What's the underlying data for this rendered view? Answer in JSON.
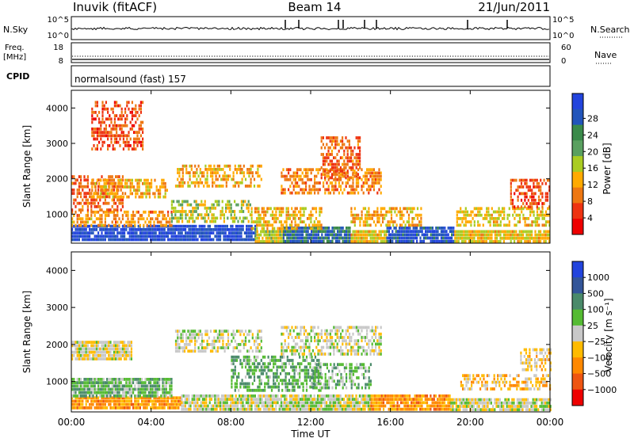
{
  "header": {
    "station": "Inuvik (fitACF)",
    "beam": "Beam 14",
    "date": "21/Jun/2011"
  },
  "summary": {
    "nsky_label": "N.Sky",
    "nsky_ticks": [
      "10^5",
      "10^0"
    ],
    "nsearch_label": "N.Search",
    "nsearch_ticks": [
      "10^5",
      "10^0"
    ],
    "freq_label": "Freq.",
    "freq_unit": "[MHz]",
    "freq_ticks": [
      "18",
      "8"
    ],
    "nave_label": "Nave",
    "nave_ticks": [
      "60",
      "0"
    ],
    "cpid_label": "CPID",
    "cpid_value": "normalsound (fast) 157"
  },
  "colors": {
    "power_scale": [
      "#2244dd",
      "#2255bb",
      "#3a8a4a",
      "#5aa060",
      "#aacc22",
      "#ffaa00",
      "#ee7711",
      "#ee3311",
      "#ee0000"
    ],
    "velocity_scale": [
      "#2244dd",
      "#335599",
      "#4a8a6a",
      "#55bb33",
      "#c8c8c8",
      "#ffbb00",
      "#ff8800",
      "#ee5511",
      "#ee0000"
    ]
  },
  "chart_data": [
    {
      "type": "heatmap",
      "title": "Power",
      "xlabel": "",
      "ylabel": "Slant Range [km]",
      "xlim": [
        "00:00",
        "24:00"
      ],
      "ylim": [
        180,
        4500
      ],
      "y_ticks": [
        "4000",
        "3000",
        "2000",
        "1000"
      ],
      "colorbar_label": "Power [dB]",
      "colorbar_ticks": [
        "28",
        "24",
        "20",
        "16",
        "12",
        "8",
        "4"
      ],
      "colorbar_range": [
        0,
        30
      ],
      "regions": [
        {
          "t0": 0.0,
          "t1": 9.2,
          "r0": 250,
          "r1": 700,
          "level": 27
        },
        {
          "t0": 9.2,
          "t1": 10.6,
          "r0": 250,
          "r1": 550,
          "level": 14
        },
        {
          "t0": 10.6,
          "t1": 14.0,
          "r0": 250,
          "r1": 650,
          "level": 24
        },
        {
          "t0": 14.0,
          "t1": 15.8,
          "r0": 250,
          "r1": 550,
          "level": 13
        },
        {
          "t0": 15.8,
          "t1": 19.2,
          "r0": 250,
          "r1": 650,
          "level": 26
        },
        {
          "t0": 19.2,
          "t1": 24.0,
          "r0": 250,
          "r1": 550,
          "level": 13
        },
        {
          "t0": 0.0,
          "t1": 5.0,
          "r0": 700,
          "r1": 1100,
          "level": 10
        },
        {
          "t0": 0.0,
          "t1": 2.6,
          "r0": 1100,
          "r1": 2100,
          "level": 7
        },
        {
          "t0": 1.0,
          "t1": 4.8,
          "r0": 1500,
          "r1": 2000,
          "level": 11
        },
        {
          "t0": 1.0,
          "t1": 3.6,
          "r0": 2800,
          "r1": 4200,
          "level": 6
        },
        {
          "t0": 5.2,
          "t1": 9.5,
          "r0": 1800,
          "r1": 2400,
          "level": 11
        },
        {
          "t0": 5.0,
          "t1": 9.0,
          "r0": 800,
          "r1": 1400,
          "level": 15
        },
        {
          "t0": 9.0,
          "t1": 12.5,
          "r0": 600,
          "r1": 1200,
          "level": 12
        },
        {
          "t0": 10.5,
          "t1": 15.5,
          "r0": 1600,
          "r1": 2300,
          "level": 9
        },
        {
          "t0": 12.5,
          "t1": 14.5,
          "r0": 2000,
          "r1": 3200,
          "level": 7
        },
        {
          "t0": 14.0,
          "t1": 17.5,
          "r0": 700,
          "r1": 1200,
          "level": 11
        },
        {
          "t0": 19.3,
          "t1": 24.0,
          "r0": 700,
          "r1": 1200,
          "level": 13
        },
        {
          "t0": 22.0,
          "t1": 24.0,
          "r0": 1200,
          "r1": 2000,
          "level": 6
        }
      ]
    },
    {
      "type": "heatmap",
      "title": "Velocity",
      "xlabel": "Time UT",
      "ylabel": "Slant Range [km]",
      "xlim": [
        "00:00",
        "24:00"
      ],
      "ylim": [
        180,
        4500
      ],
      "x_ticks": [
        "00:00",
        "04:00",
        "08:00",
        "12:00",
        "16:00",
        "20:00",
        "00:00"
      ],
      "y_ticks": [
        "4000",
        "3000",
        "2000",
        "1000"
      ],
      "colorbar_label": "Velocity [m s⁻¹]",
      "colorbar_ticks": [
        "1000",
        "500",
        "100",
        "25",
        "−25",
        "−100",
        "−500",
        "−1000"
      ],
      "colorbar_range": [
        -1000,
        1000
      ],
      "regions": [
        {
          "t0": 0.0,
          "t1": 5.5,
          "r0": 250,
          "r1": 600,
          "level": -350
        },
        {
          "t0": 5.5,
          "t1": 15.0,
          "r0": 250,
          "r1": 650,
          "level": 0
        },
        {
          "t0": 15.0,
          "t1": 19.0,
          "r0": 250,
          "r1": 650,
          "level": -400
        },
        {
          "t0": 19.0,
          "t1": 24.0,
          "r0": 250,
          "r1": 550,
          "level": 0
        },
        {
          "t0": 0.0,
          "t1": 5.0,
          "r0": 600,
          "r1": 1100,
          "level": 250
        },
        {
          "t0": 0.0,
          "t1": 3.0,
          "r0": 1600,
          "r1": 2100,
          "level": -80
        },
        {
          "t0": 5.2,
          "t1": 9.5,
          "r0": 1800,
          "r1": 2400,
          "level": 0
        },
        {
          "t0": 8.0,
          "t1": 12.5,
          "r0": 800,
          "r1": 1700,
          "level": 300
        },
        {
          "t0": 10.5,
          "t1": 15.5,
          "r0": 1700,
          "r1": 2500,
          "level": 0
        },
        {
          "t0": 12.0,
          "t1": 15.0,
          "r0": 800,
          "r1": 1500,
          "level": 250
        },
        {
          "t0": 19.5,
          "t1": 24.0,
          "r0": 800,
          "r1": 1200,
          "level": -250
        },
        {
          "t0": 22.5,
          "t1": 24.0,
          "r0": 1300,
          "r1": 1900,
          "level": -150
        }
      ]
    }
  ]
}
